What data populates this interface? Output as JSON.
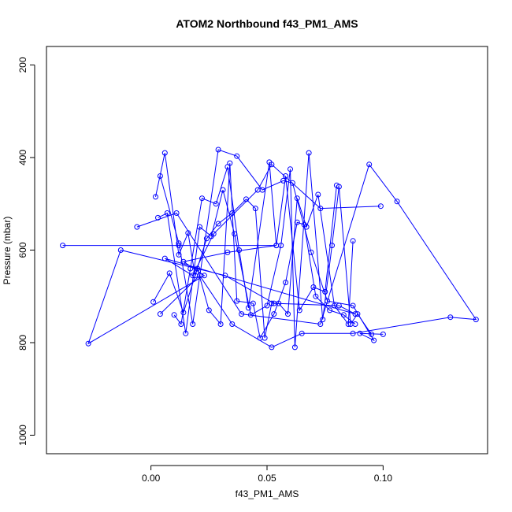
{
  "chart_data": {
    "type": "line",
    "title": "ATOM2 Northbound f43_PM1_AMS",
    "xlabel": "f43_PM1_AMS",
    "ylabel": "Pressure (mbar)",
    "xlim": [
      -0.045,
      0.145
    ],
    "ylim": [
      1040,
      160
    ],
    "y_reversed": true,
    "x_ticks": [
      0.0,
      0.05,
      0.1
    ],
    "x_tick_labels": [
      "0.00",
      "0.05",
      "0.10"
    ],
    "y_ticks": [
      200,
      400,
      600,
      800,
      1000
    ],
    "y_tick_labels": [
      "200",
      "400",
      "600",
      "800",
      "1000"
    ],
    "grid": false,
    "legend": "none",
    "color": "#0000ff",
    "marker": "open-circle",
    "series": [
      {
        "x": [
          -0.038,
          0.012,
          0.054,
          0.033,
          0.014,
          0.023,
          -0.027,
          -0.013,
          0.032,
          0.053,
          0.081,
          0.088,
          0.006,
          0.018,
          0.027,
          0.046,
          0.052,
          0.073,
          0.099
        ],
        "y": [
          590,
          590,
          590,
          605,
          625,
          655,
          802,
          600,
          655,
          715,
          720,
          738,
          618,
          655,
          565,
          470,
          415,
          510,
          505
        ]
      },
      {
        "x": [
          -0.006,
          0.011,
          0.039,
          0.073,
          0.094,
          0.106,
          0.14,
          0.129,
          0.087,
          0.065,
          0.052,
          0.035,
          0.021,
          0.004
        ],
        "y": [
          550,
          520,
          738,
          760,
          415,
          495,
          750,
          745,
          780,
          780,
          810,
          760,
          655,
          738
        ]
      },
      {
        "x": [
          0.004,
          0.012,
          0.018,
          0.029,
          0.037,
          0.048,
          0.057,
          0.061,
          0.069,
          0.076,
          0.087,
          0.096,
          0.09,
          0.1
        ],
        "y": [
          440,
          585,
          760,
          383,
          397,
          470,
          450,
          455,
          605,
          710,
          720,
          795,
          780,
          782
        ]
      },
      {
        "x": [
          0.002,
          0.006,
          0.012,
          0.016,
          0.019,
          0.024,
          0.029,
          0.035,
          0.041,
          0.045,
          0.049,
          0.052,
          0.055,
          0.059,
          0.063,
          0.067,
          0.072,
          0.079,
          0.085,
          0.087
        ],
        "y": [
          485,
          390,
          610,
          563,
          655,
          575,
          543,
          520,
          490,
          510,
          790,
          715,
          715,
          738,
          488,
          550,
          480,
          720,
          760,
          580
        ]
      },
      {
        "x": [
          0.003,
          0.007,
          0.015,
          0.021,
          0.026,
          0.031,
          0.036,
          0.043,
          0.05,
          0.056,
          0.06,
          0.062,
          0.068,
          0.074,
          0.078,
          0.081,
          0.086,
          0.089,
          0.095
        ],
        "y": [
          530,
          520,
          780,
          550,
          570,
          470,
          565,
          740,
          720,
          590,
          425,
          810,
          390,
          750,
          590,
          463,
          760,
          738,
          782
        ]
      },
      {
        "x": [
          0.01,
          0.013,
          0.017,
          0.022,
          0.028,
          0.033,
          0.038,
          0.042,
          0.051,
          0.054,
          0.058,
          0.064,
          0.07,
          0.075,
          0.08
        ],
        "y": [
          740,
          760,
          640,
          488,
          500,
          420,
          600,
          725,
          410,
          590,
          440,
          730,
          680,
          690,
          460
        ]
      },
      {
        "x": [
          0.001,
          0.008,
          0.014,
          0.02,
          0.025,
          0.03,
          0.034,
          0.037,
          0.044,
          0.047,
          0.053,
          0.058,
          0.063,
          0.066,
          0.071,
          0.077,
          0.083,
          0.088
        ],
        "y": [
          712,
          650,
          735,
          640,
          730,
          760,
          412,
          710,
          715,
          790,
          738,
          670,
          540,
          545,
          700,
          730,
          740,
          760
        ]
      }
    ]
  }
}
